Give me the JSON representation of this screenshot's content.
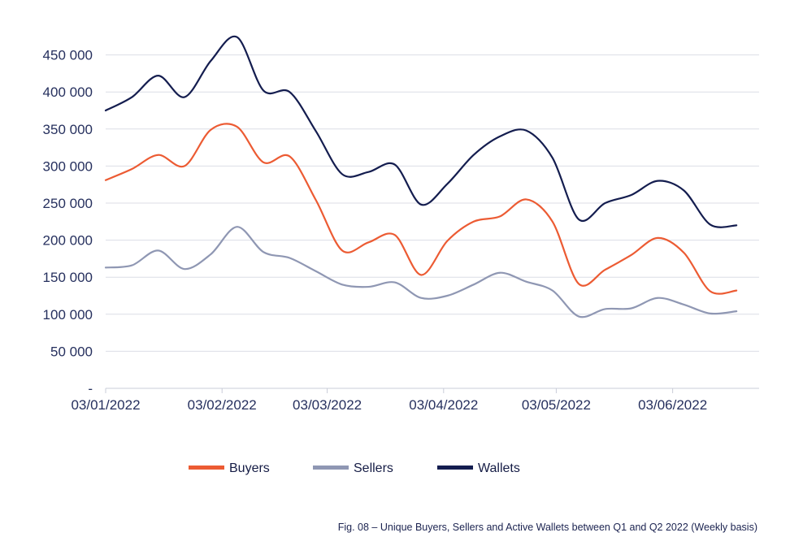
{
  "chart_data": {
    "type": "line",
    "x_start": "03/01/2022",
    "x_step_days": 7,
    "x_tick_labels": [
      "03/01/2022",
      "03/02/2022",
      "03/03/2022",
      "03/04/2022",
      "03/05/2022",
      "03/06/2022"
    ],
    "y_tick_labels": [
      "-",
      "50 000",
      "100 000",
      "150 000",
      "200 000",
      "250 000",
      "300 000",
      "350 000",
      "400 000",
      "450 000"
    ],
    "ylim": [
      0,
      500000
    ],
    "y_ticks": [
      0,
      50000,
      100000,
      150000,
      200000,
      250000,
      300000,
      350000,
      400000,
      450000
    ],
    "grid": "horizontal",
    "legend_position": "bottom",
    "series": [
      {
        "name": "Buyers",
        "color": "#ec5b33",
        "values": [
          281000,
          296000,
          315000,
          300000,
          349000,
          353000,
          305000,
          313000,
          254000,
          186000,
          197000,
          207000,
          153000,
          199000,
          225000,
          232000,
          255000,
          225000,
          141000,
          160000,
          180000,
          203000,
          183000,
          131000,
          132000
        ]
      },
      {
        "name": "Sellers",
        "color": "#8f97b3",
        "values": [
          163000,
          166000,
          186000,
          161000,
          181000,
          218000,
          184000,
          176000,
          158000,
          140000,
          137000,
          143000,
          122000,
          125000,
          140000,
          156000,
          144000,
          132000,
          97000,
          107000,
          108000,
          122000,
          113000,
          101000,
          104000
        ]
      },
      {
        "name": "Wallets",
        "color": "#141d4f",
        "values": [
          375000,
          393000,
          422000,
          393000,
          442000,
          474000,
          402000,
          400000,
          347000,
          289000,
          292000,
          302000,
          248000,
          276000,
          315000,
          340000,
          348000,
          311000,
          228000,
          250000,
          261000,
          280000,
          267000,
          221000,
          220000
        ]
      }
    ],
    "caption": "Fig. 08 – Unique Buyers, Sellers and Active Wallets between Q1 and Q2 2022 (Weekly basis)"
  }
}
